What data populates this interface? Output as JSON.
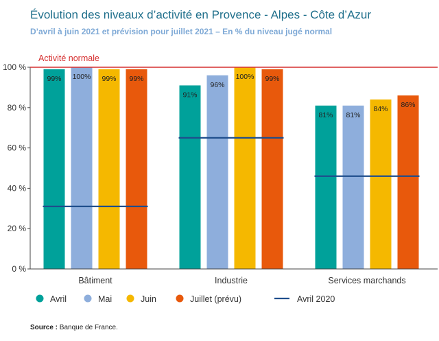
{
  "title": "Évolution des niveaux d’activité en Provence - Alpes - Côte d’Azur",
  "subtitle": "D’avril à juin 2021 et prévision pour juillet 2021 – En % du niveau jugé normal",
  "source_label": "Source :",
  "source_text": " Banque de France.",
  "chart_data": {
    "type": "bar",
    "categories": [
      "Bâtiment",
      "Industrie",
      "Services marchands"
    ],
    "series": [
      {
        "name": "Avril",
        "color": "#00a19a",
        "values": [
          99,
          91,
          81
        ],
        "labels": [
          "99%",
          "91%",
          "81%"
        ]
      },
      {
        "name": "Mai",
        "color": "#8eaedc",
        "values": [
          100,
          96,
          81
        ],
        "labels": [
          "100%",
          "96%",
          "81%"
        ]
      },
      {
        "name": "Juin",
        "color": "#f5b800",
        "values": [
          99,
          100,
          84
        ],
        "labels": [
          "99%",
          "100%",
          "84%"
        ]
      },
      {
        "name": "Juillet (prévu)",
        "color": "#e8590c",
        "values": [
          99,
          99,
          86
        ],
        "labels": [
          "99%",
          "99%",
          "86%"
        ]
      }
    ],
    "reference_series": {
      "name": "Avril 2020",
      "color": "#1f4e8c",
      "values": [
        31,
        65,
        46
      ]
    },
    "normal_line": {
      "label": "Activité normale",
      "value": 100,
      "color": "#d62f2f"
    },
    "ylim": [
      0,
      100
    ],
    "yticks": [
      0,
      20,
      40,
      60,
      80,
      100
    ],
    "ytick_labels": [
      "0 %",
      "20 %",
      "40 %",
      "60 %",
      "80 %",
      "100 %"
    ],
    "legend_position": "bottom",
    "grid": false
  }
}
